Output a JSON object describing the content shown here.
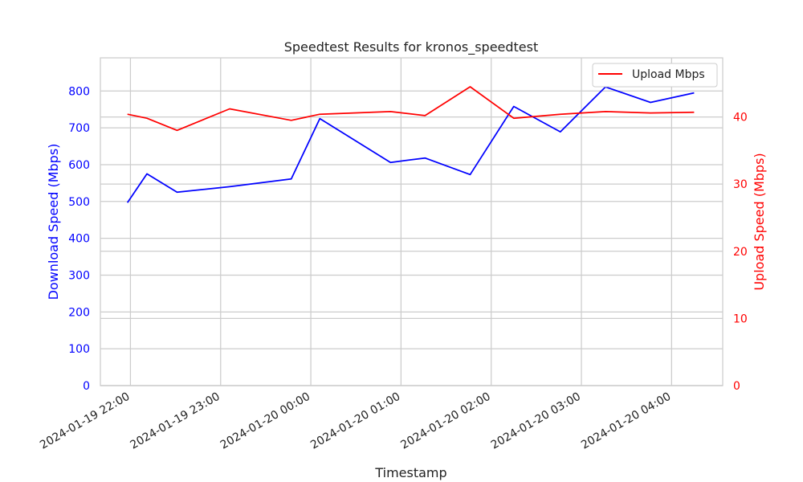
{
  "chart_data": {
    "type": "line",
    "title": "Speedtest Results for kronos_speedtest",
    "xlabel": "Timestamp",
    "x_tick_labels": [
      "2024-01-19 22:00",
      "2024-01-19 23:00",
      "2024-01-20 00:00",
      "2024-01-20 01:00",
      "2024-01-20 02:00",
      "2024-01-20 03:00",
      "2024-01-20 04:00"
    ],
    "x_ticks": [
      "2024-01-19 22:00",
      "2024-01-19 23:00",
      "2024-01-20 00:00",
      "2024-01-20 01:00",
      "2024-01-20 02:00",
      "2024-01-20 03:00",
      "2024-01-20 04:00"
    ],
    "xlim": [
      "2024-01-19 21:40",
      "2024-01-20 04:34"
    ],
    "grid": true,
    "legend_position": "top-right",
    "left_axis": {
      "label": "Download Speed (Mbps)",
      "color": "#0000ff",
      "ylim": [
        0,
        890
      ],
      "ticks": [
        0,
        100,
        200,
        300,
        400,
        500,
        600,
        700,
        800
      ]
    },
    "right_axis": {
      "label": "Upload Speed (Mbps)",
      "color": "#ff0000",
      "ylim": [
        0,
        48.8
      ],
      "ticks": [
        0,
        10,
        20,
        30,
        40
      ]
    },
    "series": [
      {
        "axis": "left",
        "color": "#0000ff",
        "points": [
          {
            "x": "2024-01-19 21:58",
            "y": 497
          },
          {
            "x": "2024-01-19 22:11",
            "y": 575
          },
          {
            "x": "2024-01-19 22:31",
            "y": 525
          },
          {
            "x": "2024-01-19 23:06",
            "y": 540
          },
          {
            "x": "2024-01-19 23:47",
            "y": 561
          },
          {
            "x": "2024-01-20 00:06",
            "y": 725
          },
          {
            "x": "2024-01-20 00:53",
            "y": 606
          },
          {
            "x": "2024-01-20 01:16",
            "y": 618
          },
          {
            "x": "2024-01-20 01:46",
            "y": 573
          },
          {
            "x": "2024-01-20 02:15",
            "y": 758
          },
          {
            "x": "2024-01-20 02:46",
            "y": 689
          },
          {
            "x": "2024-01-20 03:16",
            "y": 811
          },
          {
            "x": "2024-01-20 03:46",
            "y": 769
          },
          {
            "x": "2024-01-20 04:15",
            "y": 795
          }
        ]
      },
      {
        "name": "Upload Mbps",
        "axis": "right",
        "color": "#ff0000",
        "points": [
          {
            "x": "2024-01-19 21:58",
            "y": 40.4
          },
          {
            "x": "2024-01-19 22:11",
            "y": 39.8
          },
          {
            "x": "2024-01-19 22:31",
            "y": 38.0
          },
          {
            "x": "2024-01-19 23:06",
            "y": 41.2
          },
          {
            "x": "2024-01-19 23:47",
            "y": 39.5
          },
          {
            "x": "2024-01-20 00:06",
            "y": 40.4
          },
          {
            "x": "2024-01-20 00:53",
            "y": 40.8
          },
          {
            "x": "2024-01-20 01:16",
            "y": 40.2
          },
          {
            "x": "2024-01-20 01:46",
            "y": 44.5
          },
          {
            "x": "2024-01-20 02:15",
            "y": 39.8
          },
          {
            "x": "2024-01-20 02:46",
            "y": 40.4
          },
          {
            "x": "2024-01-20 03:16",
            "y": 40.8
          },
          {
            "x": "2024-01-20 03:46",
            "y": 40.6
          },
          {
            "x": "2024-01-20 04:15",
            "y": 40.7
          }
        ]
      }
    ]
  }
}
